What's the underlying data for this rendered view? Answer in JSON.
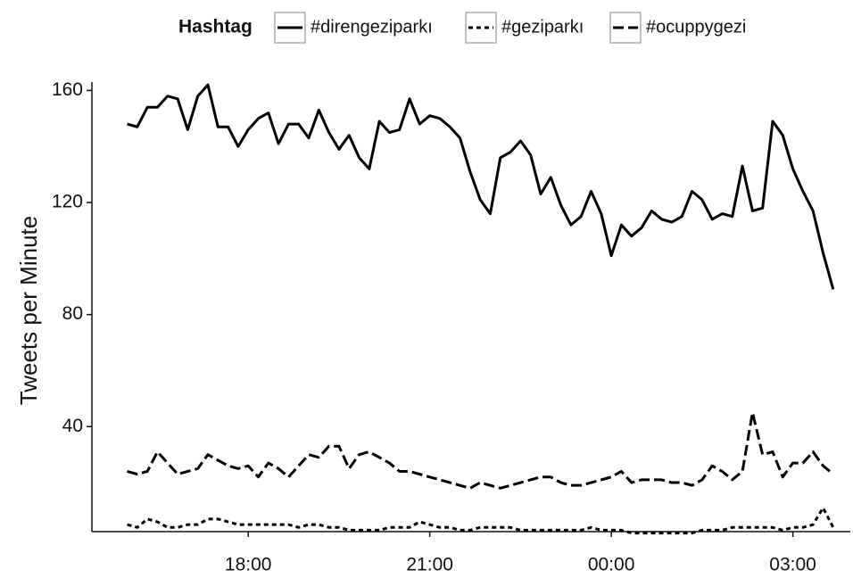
{
  "chart_data": {
    "type": "line",
    "legend_title": "Hashtag",
    "y_label": "Tweets per Minute",
    "x": [
      960,
      970,
      980,
      990,
      1000,
      1010,
      1020,
      1030,
      1040,
      1050,
      1060,
      1070,
      1080,
      1090,
      1100,
      1110,
      1120,
      1130,
      1140,
      1150,
      1160,
      1170,
      1180,
      1190,
      1200,
      1210,
      1220,
      1230,
      1240,
      1250,
      1260,
      1270,
      1280,
      1290,
      1300,
      1310,
      1320,
      1330,
      1340,
      1350,
      1360,
      1370,
      1380,
      1390,
      1400,
      1410,
      1420,
      1430,
      1440,
      1450,
      1460,
      1470,
      1480,
      1490,
      1500,
      1510,
      1520,
      1530,
      1540,
      1550,
      1560,
      1570,
      1580,
      1590,
      1600,
      1610,
      1620,
      1630,
      1640,
      1650,
      1660
    ],
    "series": [
      {
        "name": "#direngeziparkı",
        "color": "#000000",
        "dash": "none",
        "values": [
          148,
          147,
          154,
          154,
          158,
          157,
          146,
          158,
          162,
          147,
          147,
          140,
          146,
          150,
          152,
          141,
          148,
          148,
          143,
          153,
          145,
          139,
          144,
          136,
          132,
          149,
          145,
          146,
          157,
          148,
          151,
          150,
          147,
          143,
          131,
          121,
          116,
          136,
          138,
          142,
          137,
          123,
          129,
          119,
          112,
          115,
          124,
          116,
          101,
          112,
          108,
          111,
          117,
          114,
          113,
          115,
          124,
          121,
          114,
          116,
          115,
          133,
          117,
          118,
          149,
          144,
          132,
          124,
          117,
          102,
          89
        ]
      },
      {
        "name": "#geziparkı",
        "color": "#000000",
        "dash": "5,4",
        "values": [
          5,
          4,
          7,
          6,
          4,
          4,
          5,
          5,
          7,
          7,
          6,
          5,
          5,
          5,
          5,
          5,
          5,
          4,
          5,
          5,
          4,
          4,
          3,
          3,
          3,
          3,
          4,
          4,
          4,
          6,
          5,
          4,
          4,
          3,
          3,
          4,
          4,
          4,
          4,
          3,
          3,
          3,
          3,
          3,
          3,
          3,
          4,
          3,
          3,
          3,
          2,
          2,
          2,
          2,
          2,
          2,
          2,
          3,
          3,
          3,
          4,
          4,
          4,
          4,
          4,
          3,
          4,
          4,
          5,
          11,
          4
        ]
      },
      {
        "name": "#ocuppygezi",
        "color": "#000000",
        "dash": "12,5",
        "values": [
          24,
          23,
          24,
          31,
          27,
          23,
          24,
          25,
          30,
          28,
          26,
          25,
          26,
          22,
          27,
          25,
          22,
          26,
          30,
          29,
          33,
          33,
          25,
          30,
          31,
          29,
          27,
          24,
          24,
          23,
          22,
          21,
          20,
          19,
          18,
          20,
          19,
          18,
          19,
          20,
          21,
          22,
          22,
          20,
          19,
          19,
          20,
          21,
          22,
          24,
          20,
          21,
          21,
          21,
          20,
          20,
          19,
          21,
          26,
          24,
          21,
          24,
          45,
          30,
          31,
          22,
          27,
          27,
          31,
          26,
          23
        ]
      }
    ],
    "xlim": [
      925,
      1677
    ],
    "xticks": [
      {
        "value": 1080,
        "label": "18:00"
      },
      {
        "value": 1260,
        "label": "21:00"
      },
      {
        "value": 1440,
        "label": "00:00"
      },
      {
        "value": 1620,
        "label": "03:00"
      }
    ],
    "ylim": [
      2.5,
      163
    ],
    "yticks": [
      40,
      80,
      120,
      160
    ],
    "legend": "top"
  }
}
